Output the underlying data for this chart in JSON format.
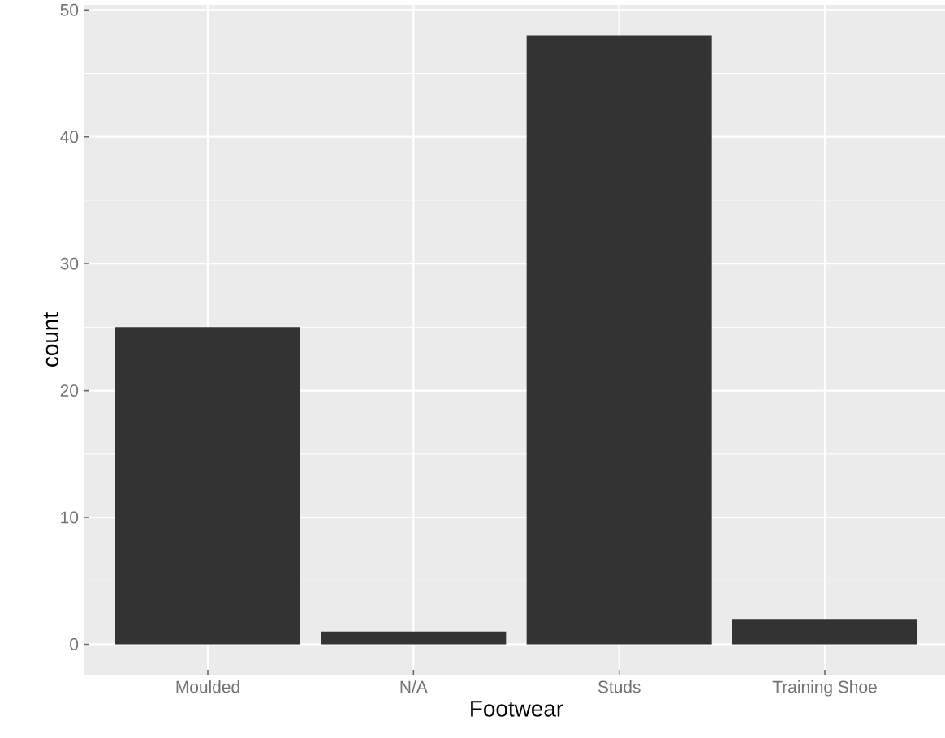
{
  "chart_data": {
    "type": "bar",
    "xlabel": "Footwear",
    "ylabel": "count",
    "categories": [
      "Moulded",
      "N/A",
      "Studs",
      "Training Shoe"
    ],
    "values": [
      25,
      1,
      48,
      2
    ],
    "color": "#333333",
    "ylim": [
      -2.4,
      50.4
    ],
    "yticks": [
      0,
      10,
      20,
      30,
      40,
      50
    ],
    "grid": true
  }
}
